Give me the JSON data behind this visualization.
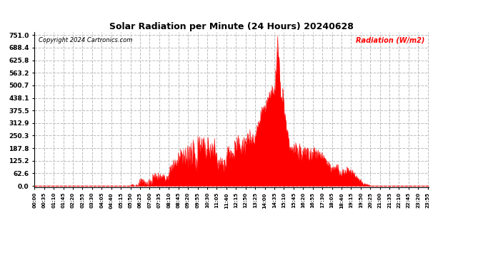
{
  "title": "Solar Radiation per Minute (24 Hours) 20240628",
  "copyright": "Copyright 2024 Cartronics.com",
  "ylabel": "Radiation (W/m2)",
  "ylabel_color": "red",
  "background_color": "white",
  "fill_color": "red",
  "line_color": "red",
  "yticks": [
    0.0,
    62.6,
    125.2,
    187.8,
    250.3,
    312.9,
    375.5,
    438.1,
    500.7,
    563.2,
    625.8,
    688.4,
    751.0
  ],
  "ymax": 751.0,
  "ymin": 0.0,
  "grid_color": "#bbbbbb",
  "grid_style": "--",
  "hline_color": "red",
  "hline_style": "--",
  "total_minutes": 1440,
  "x_tick_labels": [
    "00:00",
    "00:35",
    "01:10",
    "01:45",
    "02:20",
    "02:55",
    "03:30",
    "04:05",
    "04:40",
    "05:15",
    "05:50",
    "06:25",
    "07:00",
    "07:35",
    "08:10",
    "08:45",
    "09:20",
    "09:55",
    "10:30",
    "11:05",
    "11:40",
    "12:15",
    "12:50",
    "13:25",
    "14:00",
    "14:35",
    "15:10",
    "15:45",
    "16:20",
    "16:55",
    "17:30",
    "18:05",
    "18:40",
    "19:15",
    "19:50",
    "20:25",
    "21:00",
    "21:35",
    "22:10",
    "22:45",
    "23:20",
    "23:55"
  ]
}
